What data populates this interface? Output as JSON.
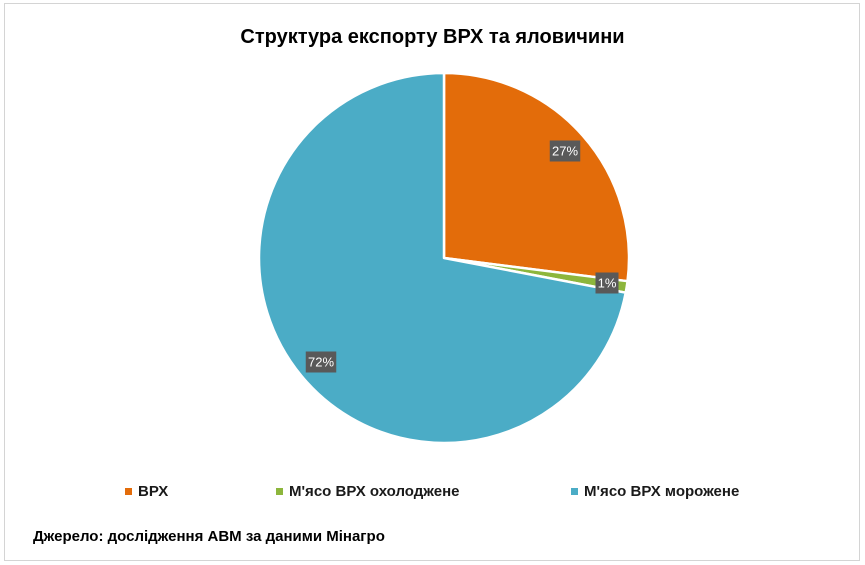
{
  "chart_data": {
    "type": "pie",
    "title": "Структура експорту ВРХ та яловичини",
    "categories": [
      "ВРХ",
      "М'ясо ВРХ охолоджене",
      "М'ясо ВРХ морожене"
    ],
    "values": [
      27,
      1,
      72
    ],
    "data_labels": [
      "27%",
      "1%",
      "72%"
    ],
    "colors": [
      "#e36c0a",
      "#8db63c",
      "#4bacc6"
    ],
    "legend_position": "bottom"
  },
  "source_text": "Джерело: дослідження АВМ за даними Мінагро"
}
